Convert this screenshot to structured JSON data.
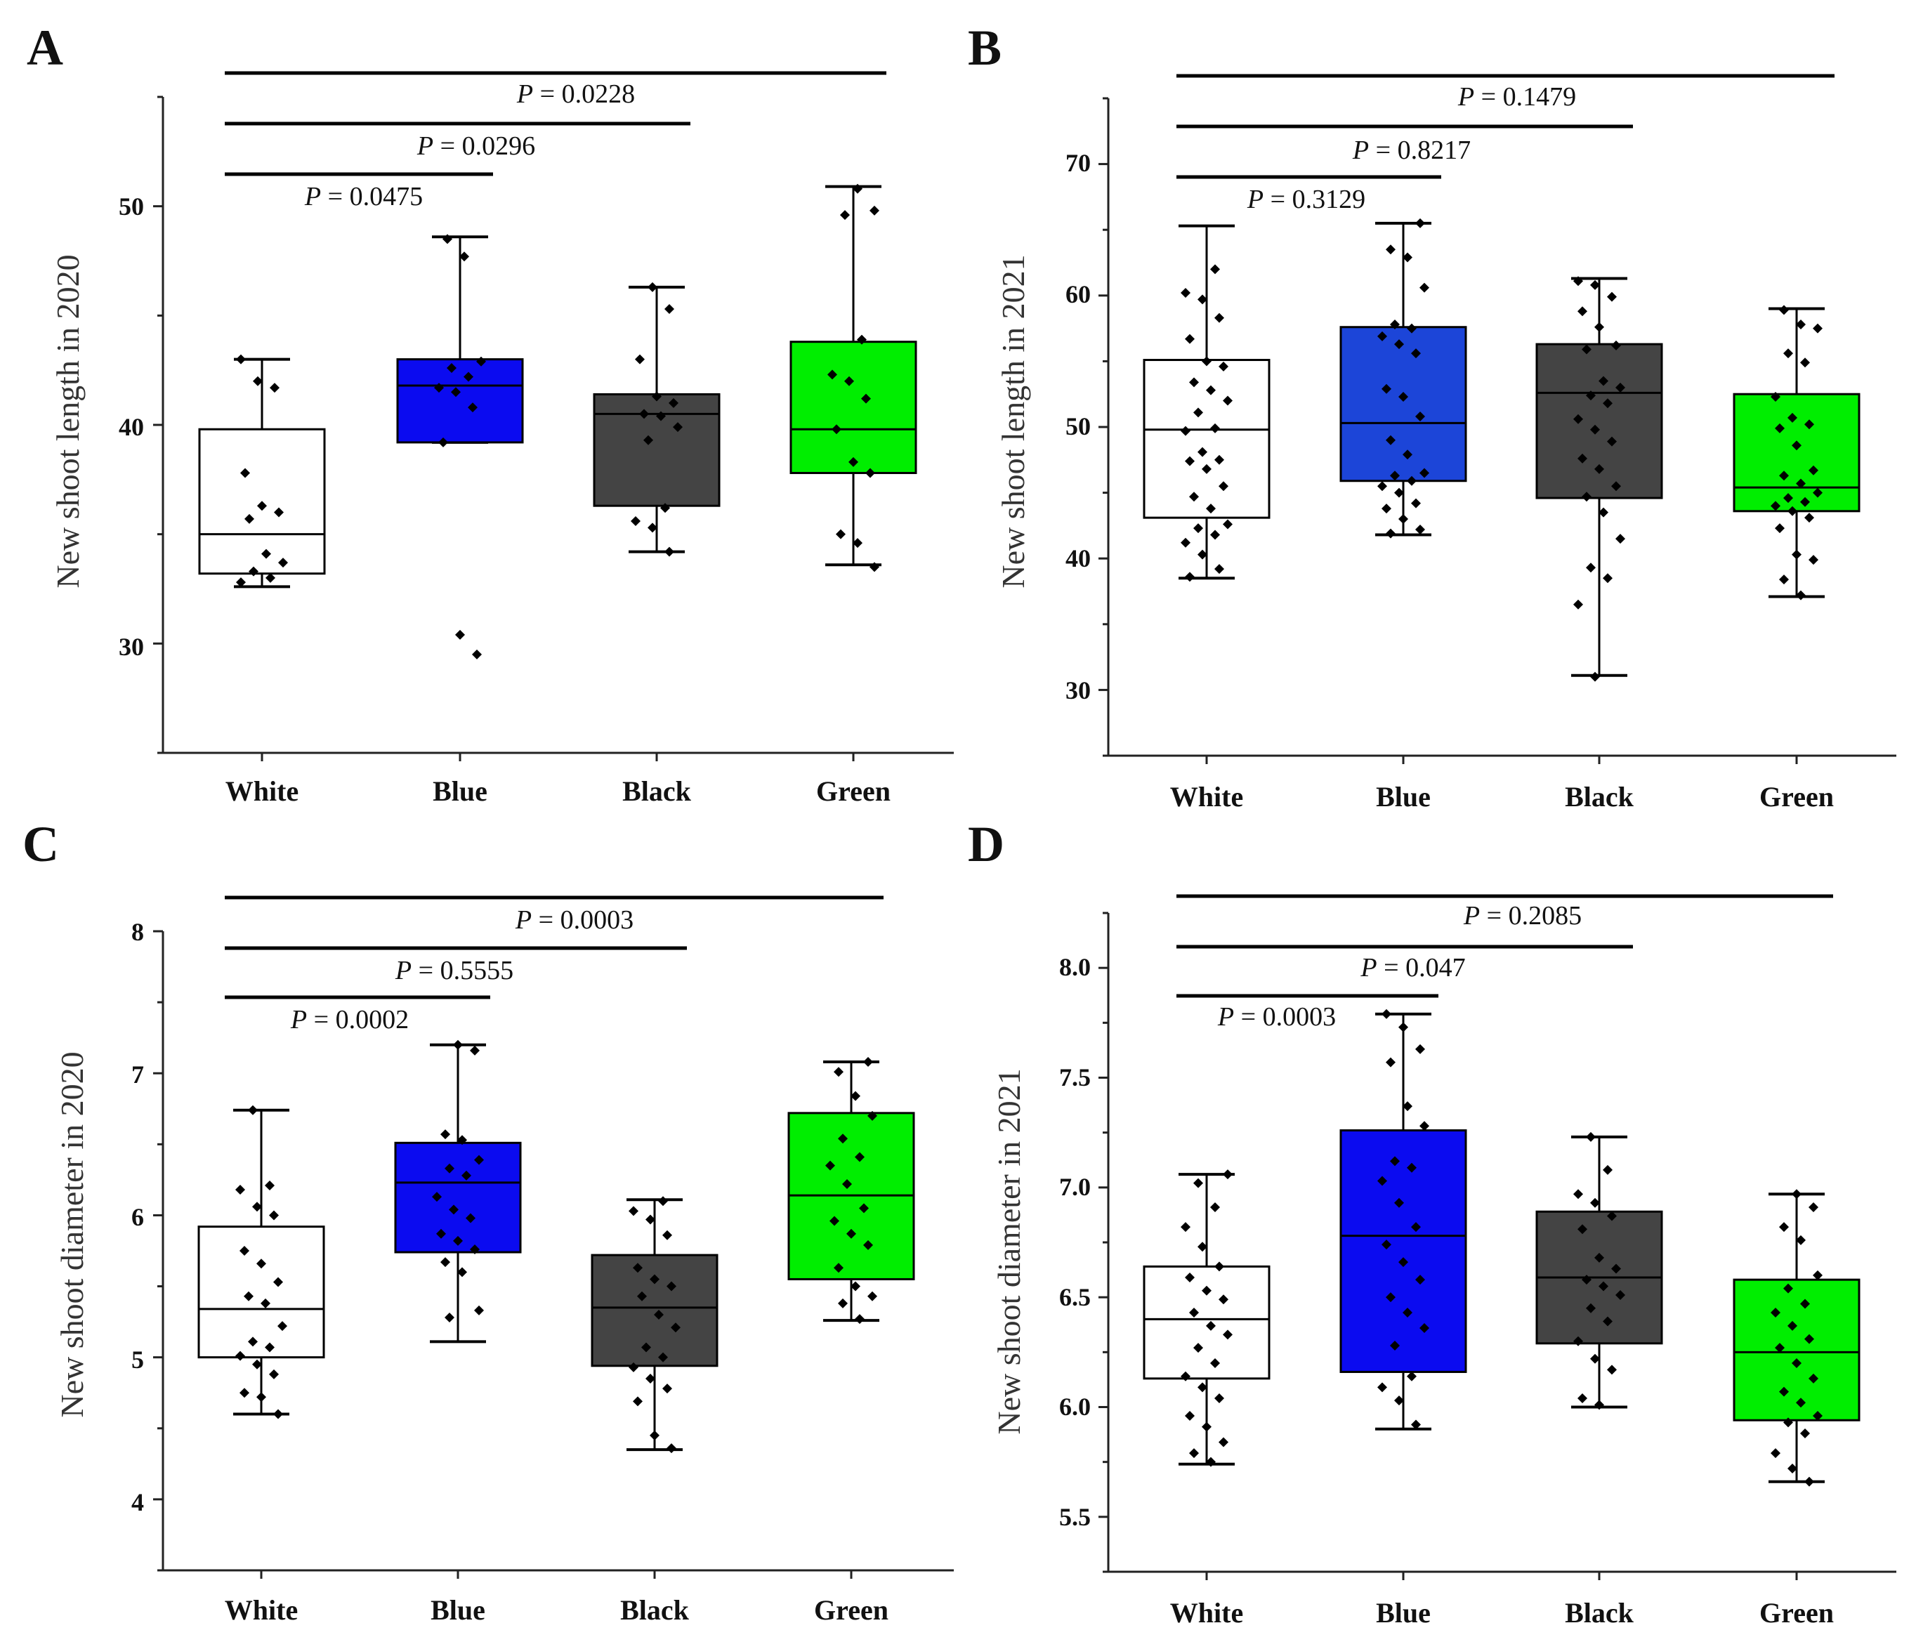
{
  "figure": {
    "background": "#ffffff",
    "box_colors": {
      "White": "#ffffff",
      "Blue": "#0b0bf0",
      "Black": "#444444",
      "Green": "#00ee00"
    },
    "panel_B_blue_color": "#1c45d8"
  },
  "chart_data": [
    {
      "panel": "A",
      "type": "box",
      "ylabel": "New shoot  length in 2020",
      "ylim": [
        25,
        55
      ],
      "yticks": [
        "30",
        "40",
        "50"
      ],
      "ytick_values": [
        30,
        40,
        50
      ],
      "categories": [
        "White",
        "Blue",
        "Black",
        "Green"
      ],
      "boxes": [
        {
          "name": "White",
          "color": "#ffffff",
          "min": 32.6,
          "q1": 33.2,
          "median": 35.0,
          "q3": 39.8,
          "max": 43.0,
          "points": [
            43.0,
            42.0,
            41.7,
            37.8,
            36.3,
            36.0,
            35.7,
            34.1,
            33.7,
            33.3,
            33.0,
            32.8
          ]
        },
        {
          "name": "Blue",
          "color": "#0b0bf0",
          "min": 39.2,
          "q1": 39.2,
          "median": 41.8,
          "q3": 43.0,
          "max": 48.6,
          "points": [
            48.5,
            47.7,
            42.9,
            42.6,
            42.2,
            41.7,
            41.5,
            40.8,
            39.2,
            30.4,
            29.5
          ]
        },
        {
          "name": "Black",
          "color": "#444444",
          "min": 34.2,
          "q1": 36.3,
          "median": 40.5,
          "q3": 41.4,
          "max": 46.3,
          "points": [
            46.3,
            45.3,
            43.0,
            41.3,
            41.0,
            40.5,
            40.4,
            39.9,
            39.3,
            36.2,
            35.6,
            35.3,
            34.2
          ]
        },
        {
          "name": "Green",
          "color": "#00ee00",
          "min": 33.6,
          "q1": 37.8,
          "median": 39.8,
          "q3": 43.8,
          "max": 50.9,
          "points": [
            50.8,
            49.8,
            49.6,
            43.9,
            42.3,
            42.0,
            41.2,
            39.8,
            38.3,
            37.8,
            35.0,
            34.6,
            33.5
          ]
        }
      ],
      "pvalue_labels": [
        "P = 0.0228",
        "P = 0.0296",
        "P = 0.0475"
      ],
      "comparisons": [
        {
          "from": "White",
          "to": "Green",
          "label": "P = 0.0228",
          "p": 0.0228
        },
        {
          "from": "White",
          "to": "Black",
          "label": "P = 0.0296",
          "p": 0.0296
        },
        {
          "from": "White",
          "to": "Blue",
          "label": "P = 0.0475",
          "p": 0.0475
        }
      ]
    },
    {
      "panel": "B",
      "type": "box",
      "ylabel": "New shoot  length in 2021",
      "ylim": [
        25,
        75
      ],
      "yticks": [
        "30",
        "40",
        "50",
        "60",
        "70"
      ],
      "ytick_values": [
        30,
        40,
        50,
        60,
        70
      ],
      "categories": [
        "White",
        "Blue",
        "Black",
        "Green"
      ],
      "boxes": [
        {
          "name": "White",
          "color": "#ffffff",
          "min": 38.5,
          "q1": 43.1,
          "median": 49.8,
          "q3": 55.1,
          "max": 65.3,
          "points": [
            62.0,
            60.2,
            59.7,
            58.3,
            56.7,
            55.0,
            54.6,
            53.4,
            52.8,
            52.0,
            51.1,
            49.9,
            49.7,
            48.1,
            47.5,
            47.4,
            46.8,
            45.5,
            44.7,
            43.8,
            42.6,
            42.3,
            41.8,
            41.2,
            40.3,
            39.2,
            38.6
          ]
        },
        {
          "name": "Blue",
          "color": "#1c45d8",
          "min": 41.8,
          "q1": 45.9,
          "median": 50.3,
          "q3": 57.6,
          "max": 65.5,
          "points": [
            65.5,
            63.5,
            62.9,
            60.6,
            57.8,
            57.5,
            56.9,
            56.3,
            55.6,
            52.9,
            52.3,
            50.8,
            49.0,
            47.9,
            46.5,
            46.3,
            45.9,
            45.5,
            45.0,
            44.2,
            43.8,
            43.0,
            42.2,
            41.9
          ]
        },
        {
          "name": "Black",
          "color": "#444444",
          "min": 31.1,
          "q1": 44.6,
          "median": 52.6,
          "q3": 56.3,
          "max": 61.3,
          "points": [
            61.1,
            60.8,
            59.9,
            58.8,
            57.6,
            56.2,
            55.9,
            53.5,
            53.0,
            52.4,
            51.8,
            50.6,
            49.8,
            48.9,
            47.6,
            46.8,
            45.5,
            44.7,
            43.5,
            41.5,
            39.3,
            38.5,
            36.5,
            31.0
          ]
        },
        {
          "name": "Green",
          "color": "#00ee00",
          "min": 37.1,
          "q1": 43.6,
          "median": 45.4,
          "q3": 52.5,
          "max": 59.0,
          "points": [
            58.9,
            57.8,
            57.5,
            55.6,
            54.9,
            52.3,
            50.7,
            50.2,
            49.9,
            48.6,
            46.7,
            46.3,
            45.7,
            45.0,
            44.6,
            44.3,
            44.0,
            43.6,
            43.1,
            42.3,
            40.3,
            39.9,
            38.4,
            37.2
          ]
        }
      ],
      "pvalue_labels": [
        "P = 0.1479",
        "P = 0.8217",
        "P = 0.3129"
      ],
      "comparisons": [
        {
          "from": "White",
          "to": "Green",
          "label": "P = 0.1479",
          "p": 0.1479
        },
        {
          "from": "White",
          "to": "Black",
          "label": "P = 0.8217",
          "p": 0.8217
        },
        {
          "from": "White",
          "to": "Blue",
          "label": "P = 0.3129",
          "p": 0.3129
        }
      ]
    },
    {
      "panel": "C",
      "type": "box",
      "ylabel": "New shoot diameter in 2020",
      "ylim": [
        3.5,
        8
      ],
      "yticks": [
        "4",
        "5",
        "6",
        "7",
        "8"
      ],
      "ytick_values": [
        4,
        5,
        6,
        7,
        8
      ],
      "categories": [
        "White",
        "Blue",
        "Black",
        "Green"
      ],
      "boxes": [
        {
          "name": "White",
          "color": "#ffffff",
          "min": 4.6,
          "q1": 5.0,
          "median": 5.34,
          "q3": 5.92,
          "max": 6.74,
          "points": [
            6.74,
            6.21,
            6.18,
            6.06,
            6.0,
            5.75,
            5.66,
            5.53,
            5.43,
            5.38,
            5.22,
            5.11,
            5.07,
            5.01,
            4.95,
            4.88,
            4.75,
            4.72,
            4.6
          ]
        },
        {
          "name": "Blue",
          "color": "#0b0bf0",
          "min": 5.11,
          "q1": 5.74,
          "median": 6.23,
          "q3": 6.51,
          "max": 7.2,
          "points": [
            7.2,
            7.16,
            6.57,
            6.53,
            6.39,
            6.33,
            6.28,
            6.13,
            6.04,
            5.98,
            5.87,
            5.82,
            5.76,
            5.67,
            5.6,
            5.33,
            5.28
          ]
        },
        {
          "name": "Black",
          "color": "#444444",
          "min": 4.35,
          "q1": 4.94,
          "median": 5.35,
          "q3": 5.72,
          "max": 6.11,
          "points": [
            6.1,
            6.03,
            5.97,
            5.86,
            5.63,
            5.55,
            5.5,
            5.43,
            5.3,
            5.21,
            5.07,
            5.0,
            4.93,
            4.85,
            4.78,
            4.69,
            4.45,
            4.36
          ]
        },
        {
          "name": "Green",
          "color": "#00ee00",
          "min": 5.26,
          "q1": 5.55,
          "median": 6.14,
          "q3": 6.72,
          "max": 7.08,
          "points": [
            7.08,
            7.01,
            6.84,
            6.7,
            6.54,
            6.41,
            6.35,
            6.22,
            6.05,
            5.96,
            5.87,
            5.79,
            5.63,
            5.5,
            5.43,
            5.38,
            5.27
          ]
        }
      ],
      "pvalue_labels": [
        "P = 0.0003",
        "P = 0.5555",
        "P = 0.0002"
      ],
      "comparisons": [
        {
          "from": "White",
          "to": "Green",
          "label": "P = 0.0003",
          "p": 0.0003
        },
        {
          "from": "White",
          "to": "Black",
          "label": "P = 0.5555",
          "p": 0.5555
        },
        {
          "from": "White",
          "to": "Blue",
          "label": "P = 0.0002",
          "p": 0.0002
        }
      ]
    },
    {
      "panel": "D",
      "type": "box",
      "ylabel": "New shoot diameter in 2021",
      "ylim": [
        5.25,
        8.25
      ],
      "yticks": [
        "5.5",
        "6.0",
        "6.5",
        "7.0",
        "7.5",
        "8.0"
      ],
      "ytick_values": [
        5.5,
        6.0,
        6.5,
        7.0,
        7.5,
        8.0
      ],
      "categories": [
        "White",
        "Blue",
        "Black",
        "Green"
      ],
      "boxes": [
        {
          "name": "White",
          "color": "#ffffff",
          "min": 5.74,
          "q1": 6.13,
          "median": 6.4,
          "q3": 6.64,
          "max": 7.06,
          "points": [
            7.06,
            7.02,
            6.91,
            6.82,
            6.73,
            6.64,
            6.59,
            6.53,
            6.49,
            6.43,
            6.37,
            6.33,
            6.27,
            6.2,
            6.14,
            6.09,
            6.04,
            5.96,
            5.91,
            5.84,
            5.79,
            5.75
          ]
        },
        {
          "name": "Blue",
          "color": "#0b0bf0",
          "min": 5.9,
          "q1": 6.16,
          "median": 6.78,
          "q3": 7.26,
          "max": 7.79,
          "points": [
            7.79,
            7.73,
            7.63,
            7.57,
            7.37,
            7.28,
            7.12,
            7.09,
            7.03,
            6.93,
            6.82,
            6.74,
            6.66,
            6.58,
            6.5,
            6.43,
            6.36,
            6.28,
            6.14,
            6.09,
            6.03,
            5.92
          ]
        },
        {
          "name": "Black",
          "color": "#444444",
          "min": 6.0,
          "q1": 6.29,
          "median": 6.59,
          "q3": 6.89,
          "max": 7.23,
          "points": [
            7.23,
            7.08,
            6.97,
            6.93,
            6.87,
            6.81,
            6.68,
            6.63,
            6.58,
            6.55,
            6.51,
            6.45,
            6.39,
            6.3,
            6.22,
            6.17,
            6.04,
            6.01
          ]
        },
        {
          "name": "Green",
          "color": "#00ee00",
          "min": 5.66,
          "q1": 5.94,
          "median": 6.25,
          "q3": 6.58,
          "max": 6.97,
          "points": [
            6.97,
            6.91,
            6.82,
            6.76,
            6.6,
            6.54,
            6.47,
            6.43,
            6.37,
            6.31,
            6.27,
            6.2,
            6.13,
            6.07,
            6.02,
            5.96,
            5.93,
            5.88,
            5.79,
            5.72,
            5.66
          ]
        }
      ],
      "pvalue_labels": [
        "P = 0.2085",
        "P = 0.047",
        "P = 0.0003"
      ],
      "comparisons": [
        {
          "from": "White",
          "to": "Green",
          "label": "P = 0.2085",
          "p": 0.2085
        },
        {
          "from": "White",
          "to": "Black",
          "label": "P = 0.047",
          "p": 0.047
        },
        {
          "from": "White",
          "to": "Blue",
          "label": "P = 0.0003",
          "p": 0.0003
        }
      ]
    }
  ]
}
